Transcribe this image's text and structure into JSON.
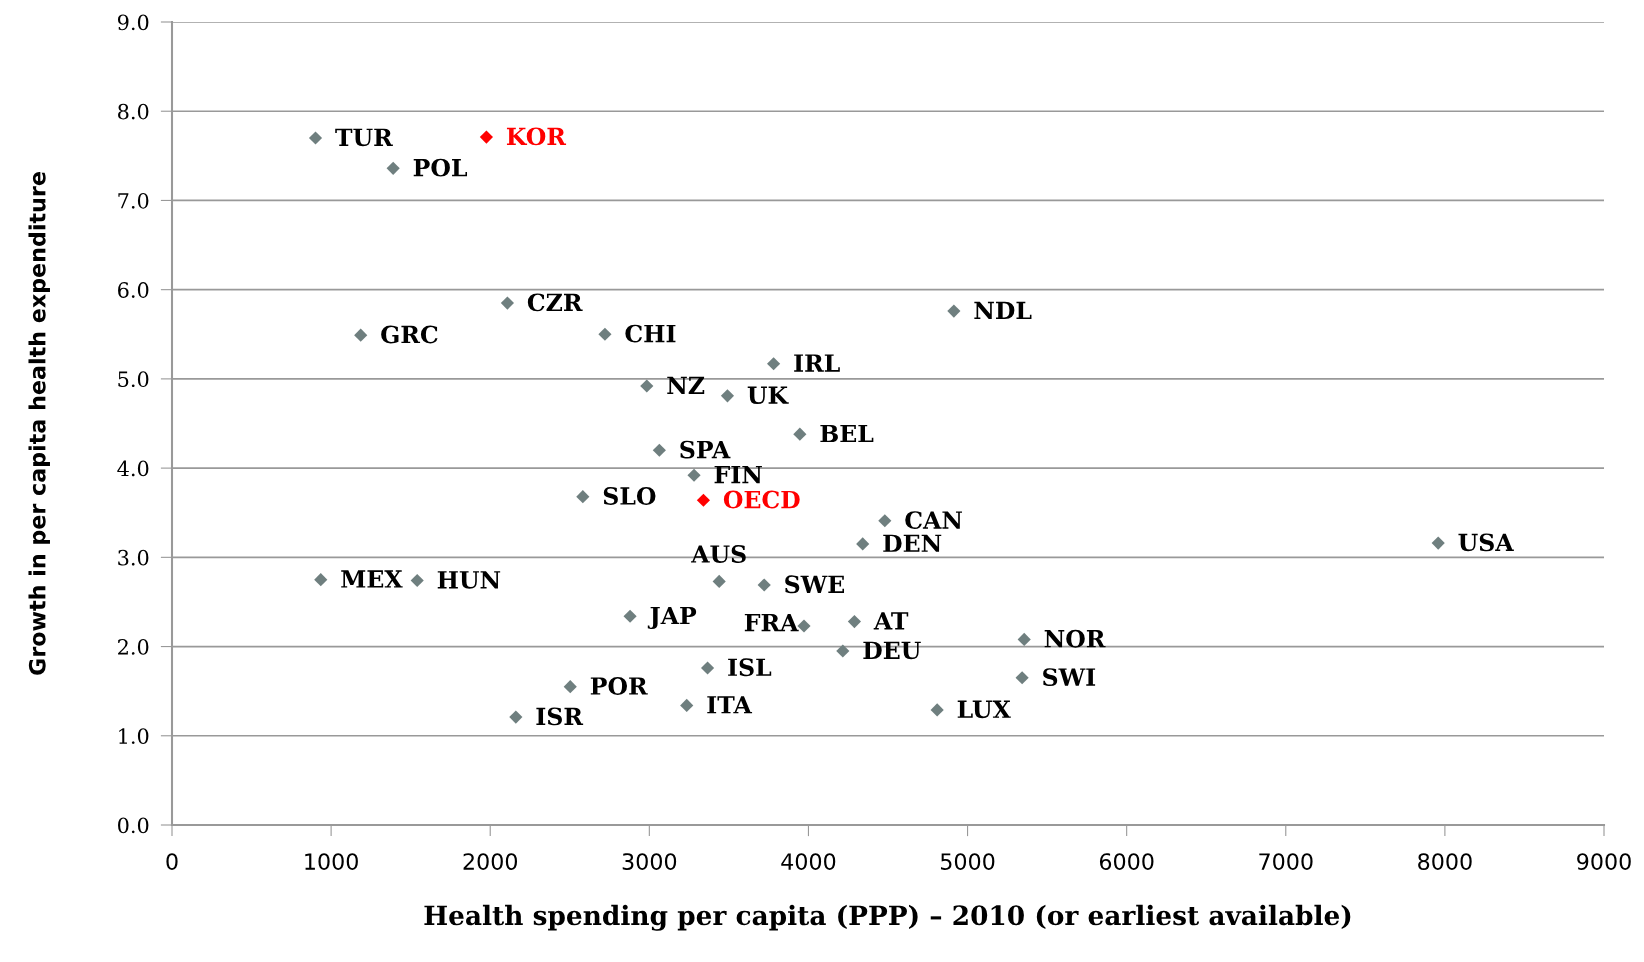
{
  "chart_data": {
    "type": "scatter",
    "xlabel": "Health spending per capita (PPP) – 2010 (or earliest available)",
    "ylabel": "Growth in per capita health expenditure",
    "xlim": [
      0,
      9000
    ],
    "xticks": [
      0,
      1000,
      2000,
      3000,
      4000,
      5000,
      6000,
      7000,
      8000,
      9000
    ],
    "ylim": [
      0,
      9
    ],
    "yticks": [
      {
        "value": 0,
        "label": "0.0"
      },
      {
        "value": 1,
        "label": "1.0"
      },
      {
        "value": 2,
        "label": "2.0"
      },
      {
        "value": 3,
        "label": "3.0"
      },
      {
        "value": 4,
        "label": "4.0"
      },
      {
        "value": 5,
        "label": "5.0"
      },
      {
        "value": 6,
        "label": "6.0"
      },
      {
        "value": 7,
        "label": "7.0"
      },
      {
        "value": 8,
        "label": "8.0"
      },
      {
        "value": 9,
        "label": "9.0"
      }
    ],
    "grid": "y",
    "marker": "diamond",
    "series": [
      {
        "color": "#6f7f7f",
        "x": [
          902,
          1390,
          2108,
          1186,
          2721,
          4914,
          3781,
          2984,
          3491,
          3946,
          3063,
          3281,
          2582,
          4480,
          4341,
          7958,
          935,
          1541,
          3439,
          3722,
          2879,
          3972,
          4289,
          4216,
          5356,
          3366,
          2503,
          5343,
          3235,
          4809,
          2161
        ],
        "values": [
          7.7,
          7.36,
          5.85,
          5.49,
          5.5,
          5.76,
          5.17,
          4.92,
          4.81,
          4.38,
          4.2,
          3.92,
          3.68,
          3.41,
          3.15,
          3.16,
          2.75,
          2.74,
          2.73,
          2.69,
          2.34,
          2.23,
          2.28,
          1.95,
          2.08,
          1.76,
          1.55,
          1.65,
          1.34,
          1.29,
          1.21
        ]
      },
      {
        "color": "#ff0000",
        "x": [
          1976,
          3340
        ],
        "values": [
          7.71,
          3.64
        ]
      }
    ],
    "annotations": [
      {
        "text": "TUR",
        "x": 902,
        "y": 7.7
      },
      {
        "text": "POL",
        "x": 1390,
        "y": 7.36
      },
      {
        "text": "CZR",
        "x": 2108,
        "y": 5.85
      },
      {
        "text": "GRC",
        "x": 1186,
        "y": 5.49
      },
      {
        "text": "CHI",
        "x": 2721,
        "y": 5.5
      },
      {
        "text": "NDL",
        "x": 4914,
        "y": 5.76
      },
      {
        "text": "IRL",
        "x": 3781,
        "y": 5.17
      },
      {
        "text": "NZ",
        "x": 2984,
        "y": 4.92
      },
      {
        "text": "UK",
        "x": 3491,
        "y": 4.81
      },
      {
        "text": "BEL",
        "x": 3946,
        "y": 4.38
      },
      {
        "text": "SPA",
        "x": 3063,
        "y": 4.2
      },
      {
        "text": "FIN",
        "x": 3281,
        "y": 3.92
      },
      {
        "text": "SLO",
        "x": 2582,
        "y": 3.68
      },
      {
        "text": "CAN",
        "x": 4480,
        "y": 3.41
      },
      {
        "text": "DEN",
        "x": 4341,
        "y": 3.15
      },
      {
        "text": "USA",
        "x": 7958,
        "y": 3.16
      },
      {
        "text": "MEX",
        "x": 935,
        "y": 2.75
      },
      {
        "text": "HUN",
        "x": 1541,
        "y": 2.74
      },
      {
        "text": "AUS",
        "x": 3439,
        "y": 2.73
      },
      {
        "text": "SWE",
        "x": 3722,
        "y": 2.69
      },
      {
        "text": "JAP",
        "x": 2879,
        "y": 2.34
      },
      {
        "text": "FRA",
        "x": 3972,
        "y": 2.23
      },
      {
        "text": "AT",
        "x": 4289,
        "y": 2.28
      },
      {
        "text": "DEU",
        "x": 4216,
        "y": 1.95
      },
      {
        "text": "NOR",
        "x": 5356,
        "y": 2.08
      },
      {
        "text": "ISL",
        "x": 3366,
        "y": 1.76
      },
      {
        "text": "POR",
        "x": 2503,
        "y": 1.55
      },
      {
        "text": "SWI",
        "x": 5343,
        "y": 1.65
      },
      {
        "text": "ITA",
        "x": 3235,
        "y": 1.34
      },
      {
        "text": "LUX",
        "x": 4809,
        "y": 1.29
      },
      {
        "text": "ISR",
        "x": 2161,
        "y": 1.21
      },
      {
        "text": "KOR",
        "x": 1976,
        "y": 7.71
      },
      {
        "text": "OECD",
        "x": 3340,
        "y": 3.64
      }
    ]
  }
}
